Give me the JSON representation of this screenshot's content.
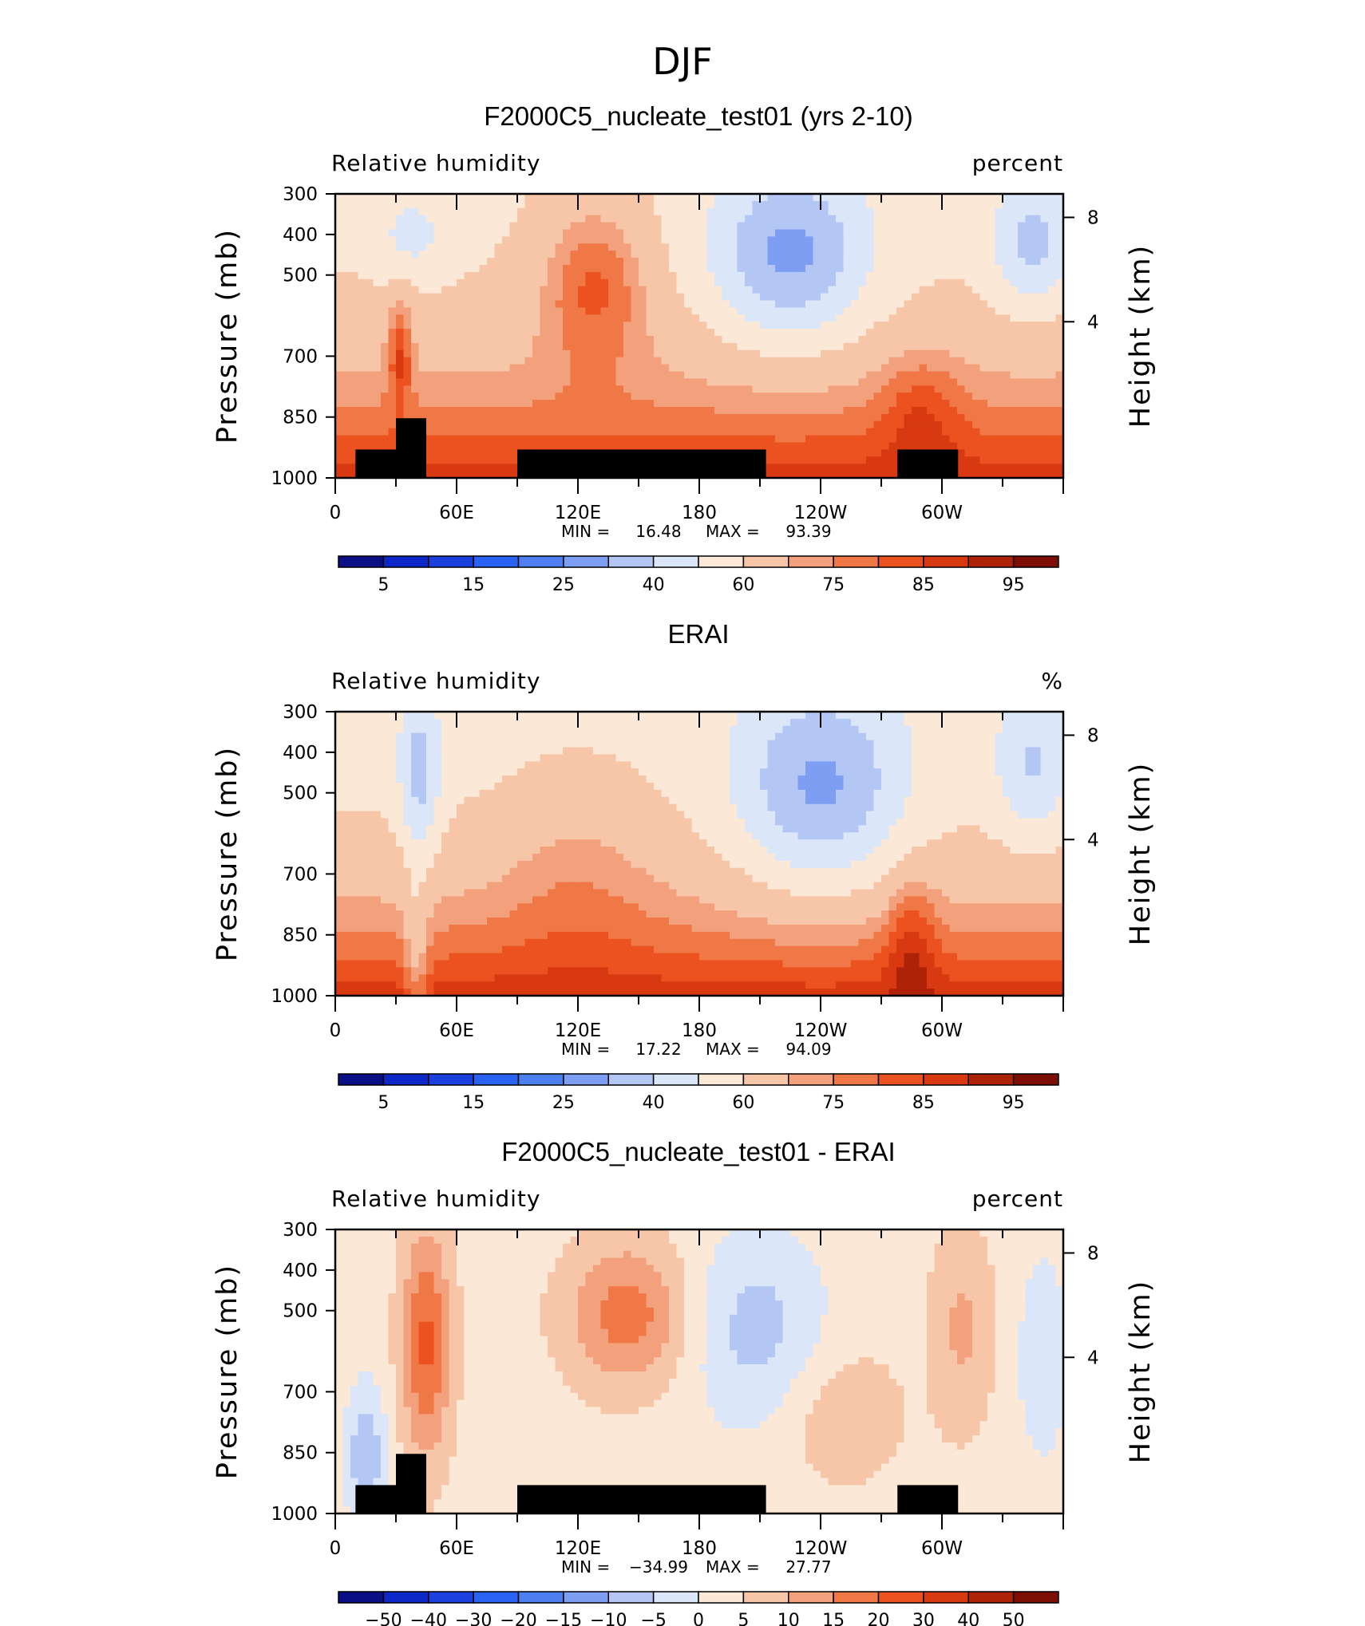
{
  "figure": {
    "title": "DJF",
    "palette": [
      "#0a0f86",
      "#0c28c6",
      "#1c3fe0",
      "#2a62f4",
      "#4d7ff0",
      "#7e9ef4",
      "#b3c6f4",
      "#dbe6f8",
      "#fbe8d7",
      "#f7c6a8",
      "#f3a07c",
      "#ef7846",
      "#ec5220",
      "#d93910",
      "#ae2208",
      "#7d0e04"
    ]
  },
  "chart_data": [
    {
      "type": "heatmap",
      "title": "F2000C5_nucleate_test01 (yrs 2-10)",
      "variable": "Relative humidity",
      "units": "percent",
      "ylabel": "Pressure (mb)",
      "ylabel_right": "Height (km)",
      "xticks": [
        "0",
        "60E",
        "120E",
        "180",
        "120W",
        "60W"
      ],
      "yticks": [
        "300",
        "400",
        "500",
        "700",
        "850",
        "1000"
      ],
      "yticks_right": [
        "8",
        "4"
      ],
      "min_label": "MIN =",
      "min": "16.48",
      "max_label": "MAX =",
      "max": "93.39",
      "levels": [
        "5",
        "15",
        "25",
        "40",
        "60",
        "75",
        "85",
        "95"
      ],
      "xlim": [
        0,
        360
      ],
      "ylim": [
        1000,
        300
      ]
    },
    {
      "type": "heatmap",
      "title": "ERAI",
      "variable": "Relative humidity",
      "units": "%",
      "ylabel": "Pressure (mb)",
      "ylabel_right": "Height (km)",
      "xticks": [
        "0",
        "60E",
        "120E",
        "180",
        "120W",
        "60W"
      ],
      "yticks": [
        "300",
        "400",
        "500",
        "700",
        "850",
        "1000"
      ],
      "yticks_right": [
        "8",
        "4"
      ],
      "min_label": "MIN =",
      "min": "17.22",
      "max_label": "MAX =",
      "max": "94.09",
      "levels": [
        "5",
        "15",
        "25",
        "40",
        "60",
        "75",
        "85",
        "95"
      ],
      "xlim": [
        0,
        360
      ],
      "ylim": [
        1000,
        300
      ]
    },
    {
      "type": "heatmap",
      "title": "F2000C5_nucleate_test01 - ERAI",
      "variable": "Relative humidity",
      "units": "percent",
      "ylabel": "Pressure (mb)",
      "ylabel_right": "Height (km)",
      "xticks": [
        "0",
        "60E",
        "120E",
        "180",
        "120W",
        "60W"
      ],
      "yticks": [
        "300",
        "400",
        "500",
        "700",
        "850",
        "1000"
      ],
      "yticks_right": [
        "8",
        "4"
      ],
      "min_label": "MIN =",
      "min": "−34.99",
      "max_label": "MAX =",
      "max": "27.77",
      "levels": [
        "−50",
        "−40",
        "−30",
        "−20",
        "−15",
        "−10",
        "−5",
        "0",
        "5",
        "10",
        "15",
        "20",
        "30",
        "40",
        "50"
      ],
      "xlim": [
        0,
        360
      ],
      "ylim": [
        1000,
        300
      ]
    }
  ]
}
